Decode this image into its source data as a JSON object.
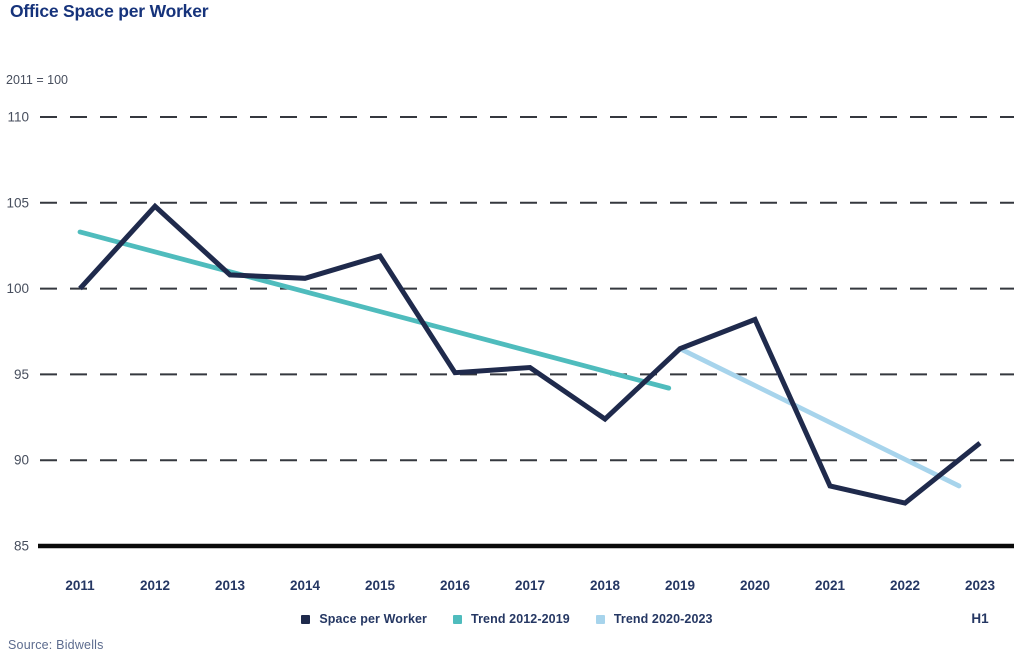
{
  "page": {
    "title": "Office Space per Worker",
    "index_note": "2011 = 100",
    "source": "Source: Bidwells"
  },
  "chart_data": {
    "type": "line",
    "title": "Office Space per Worker",
    "subtitle": "2011 = 100",
    "xlabel": "",
    "ylabel": "",
    "ylim": [
      85,
      110
    ],
    "y_ticks": [
      85,
      90,
      95,
      100,
      105,
      110
    ],
    "x_categories": [
      2011,
      2012,
      2013,
      2014,
      2015,
      2016,
      2017,
      2018,
      2019,
      2020,
      2021,
      2022,
      2023
    ],
    "x_last_sub_label": "H1",
    "grid": "horizontal-dashed",
    "legend_position": "bottom-center",
    "axis_color": "#0A0A0A",
    "gridline_color": "#35383F",
    "tick_label_color": "#474E5D",
    "x_label_color": "#253763",
    "series": [
      {
        "name": "Space per Worker",
        "color": "#1F2A4C",
        "x": [
          2011,
          2012,
          2013,
          2014,
          2015,
          2016,
          2017,
          2018,
          2019,
          2020,
          2021,
          2022,
          2023
        ],
        "values": [
          100.0,
          104.8,
          100.8,
          100.6,
          101.9,
          95.1,
          95.4,
          92.4,
          96.5,
          98.2,
          88.5,
          87.5,
          91.0
        ]
      },
      {
        "name": "Trend 2012-2019",
        "color": "#4FBCBD",
        "trend_line": {
          "x1": 2011.0,
          "y1": 103.3,
          "x2": 2018.85,
          "y2": 94.2
        }
      },
      {
        "name": "Trend 2020-2023",
        "color": "#A7D4EC",
        "trend_line": {
          "x1": 2019.0,
          "y1": 96.5,
          "x2": 2022.72,
          "y2": 88.5
        }
      }
    ]
  }
}
